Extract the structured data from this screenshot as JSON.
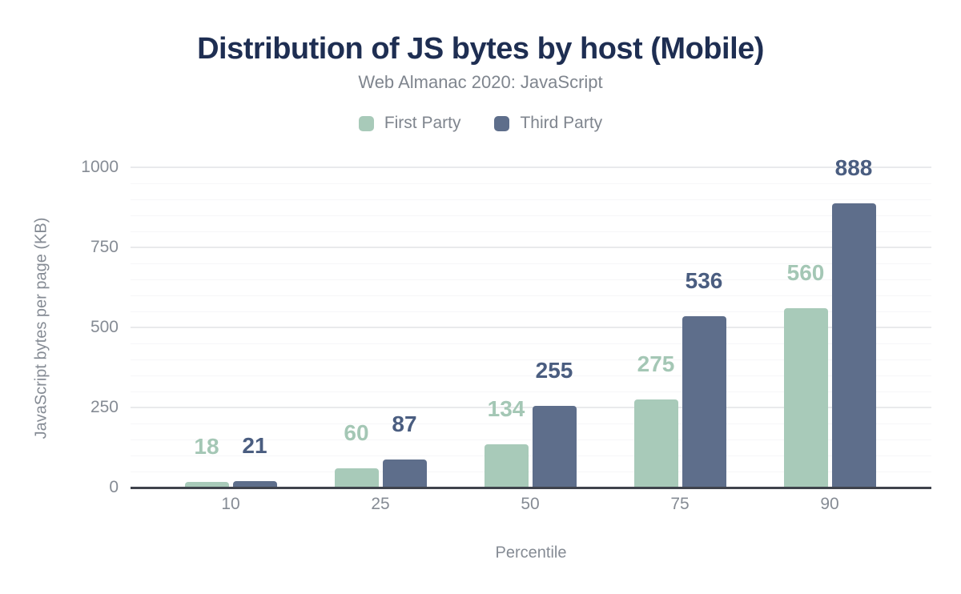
{
  "chart_data": {
    "type": "bar",
    "title": "Distribution of JS bytes by host (Mobile)",
    "subtitle": "Web Almanac 2020: JavaScript",
    "categories": [
      "10",
      "25",
      "50",
      "75",
      "90"
    ],
    "series": [
      {
        "name": "First Party",
        "color": "#a8cab9",
        "label_color": "#a4c7b5",
        "values": [
          18,
          60,
          134,
          275,
          560
        ]
      },
      {
        "name": "Third Party",
        "color": "#5e6e8b",
        "label_color": "#4a5d80",
        "values": [
          21,
          87,
          255,
          536,
          888
        ]
      }
    ],
    "xlabel": "Percentile",
    "ylabel": "JavaScript bytes per page (KB)",
    "ylim": [
      0,
      1000
    ],
    "yticks": [
      0,
      250,
      500,
      750,
      1000
    ],
    "minor_grid_step": 50,
    "grid": true,
    "legend_position": "top",
    "value_labels": true,
    "colors": {
      "title_text": "#1e2e52",
      "axis_text": "#858b94",
      "baseline": "#3f434c",
      "major_grid": "#e9eaec",
      "minor_grid": "#f6f6f8",
      "background": "#ffffff"
    }
  }
}
